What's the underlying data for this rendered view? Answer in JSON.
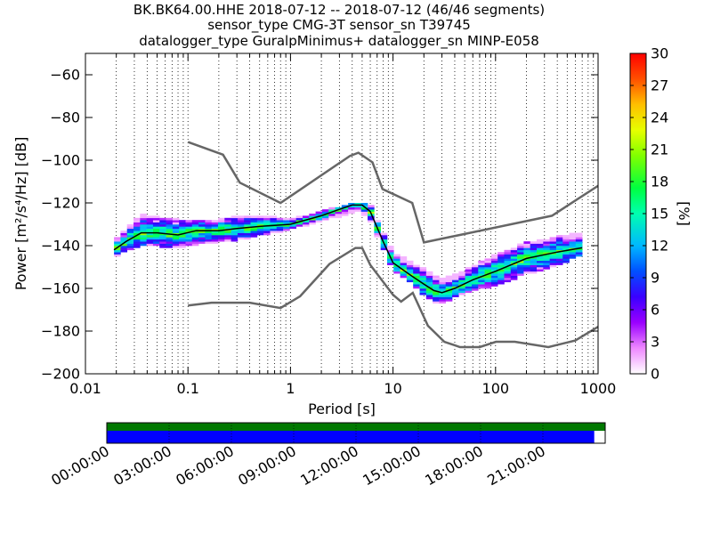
{
  "header": {
    "line1": "BK.BK64.00.HHE   2018-07-12 -- 2018-07-12  (46/46 segments)",
    "line2": "sensor_type CMG-3T sensor_sn T39745",
    "line3": "datalogger_type GuralpMinimus+ datalogger_sn MINP-E058"
  },
  "chart_data": [
    {
      "type": "heatmap",
      "title": "BK.BK64.00.HHE   2018-07-12 -- 2018-07-12  (46/46 segments)",
      "xlabel": "Period [s]",
      "ylabel": "Power [m²/s⁴/Hz] [dB]",
      "xscale": "log",
      "xlim": [
        0.01,
        1000
      ],
      "ylim": [
        -200,
        -50
      ],
      "xticks": [
        0.01,
        0.1,
        1,
        10,
        100,
        1000
      ],
      "xtick_labels": [
        "0.01",
        "0.1",
        "1",
        "10",
        "100",
        "1000"
      ],
      "yticks": [
        -200,
        -180,
        -160,
        -140,
        -120,
        -100,
        -80,
        -60
      ],
      "ytick_labels": [
        "−200",
        "−180",
        "−160",
        "−140",
        "−120",
        "−100",
        "−80",
        "−60"
      ],
      "grid": "dotted vertical",
      "colorbar": {
        "label": "[%]",
        "min": 0,
        "max": 30,
        "ticks": [
          0,
          3,
          6,
          9,
          12,
          15,
          18,
          21,
          24,
          27,
          30
        ],
        "tick_labels": [
          "0",
          "3",
          "6",
          "9",
          "12",
          "15",
          "18",
          "21",
          "24",
          "27",
          "30"
        ]
      },
      "series": [
        {
          "role": "high noise model",
          "color": "#666666",
          "x": [
            0.1,
            0.22,
            0.32,
            0.8,
            3.8,
            4.6,
            6.3,
            7.9,
            15.4,
            20,
            354.8,
            1000
          ],
          "y": [
            -91.5,
            -97.4,
            -110.5,
            -120,
            -98,
            -96.5,
            -101,
            -113.5,
            -120,
            -138.5,
            -126,
            -112
          ]
        },
        {
          "role": "low noise model",
          "color": "#666666",
          "x": [
            0.1,
            0.17,
            0.4,
            0.8,
            1.24,
            2.4,
            4.3,
            5,
            6,
            10,
            12,
            15.6,
            21.9,
            31.6,
            45,
            70,
            101,
            154,
            328,
            600,
            1000
          ],
          "y": [
            -168,
            -166.7,
            -166.7,
            -169.2,
            -163.7,
            -148.6,
            -141.1,
            -141.1,
            -149,
            -163,
            -166.2,
            -162.1,
            -177.5,
            -185,
            -187.5,
            -187.5,
            -185,
            -185,
            -187.5,
            -184.4,
            -178
          ]
        },
        {
          "role": "mode",
          "color": "#000000",
          "x": [
            0.019,
            0.025,
            0.035,
            0.05,
            0.08,
            0.12,
            0.2,
            0.3,
            0.5,
            1,
            2,
            3,
            4,
            5,
            6,
            8,
            10,
            15,
            20,
            25,
            30,
            40,
            60,
            100,
            200,
            400,
            700
          ],
          "y": [
            -142,
            -138,
            -134,
            -134,
            -135,
            -133,
            -133,
            -132,
            -131,
            -130,
            -126,
            -123,
            -121,
            -121,
            -124,
            -138,
            -148,
            -154,
            -158,
            -161,
            -162,
            -160,
            -156,
            -152,
            -146,
            -143,
            -141
          ]
        }
      ],
      "density": {
        "description": "probability density of PSD values in percent",
        "x": [
          0.019,
          0.025,
          0.035,
          0.05,
          0.08,
          0.12,
          0.2,
          0.3,
          0.5,
          1,
          2,
          3,
          4,
          5,
          6,
          8,
          10,
          15,
          20,
          25,
          30,
          40,
          60,
          100,
          200,
          400,
          700
        ],
        "y_low": [
          -145,
          -142,
          -140,
          -140,
          -141,
          -139,
          -138,
          -137,
          -135,
          -132,
          -128,
          -126,
          -124,
          -124,
          -128,
          -141,
          -151,
          -157,
          -163,
          -166,
          -167,
          -164,
          -161,
          -158,
          -153,
          -149,
          -144
        ],
        "y_high": [
          -138,
          -132,
          -125,
          -127,
          -128,
          -128,
          -128,
          -126,
          -126,
          -128,
          -124,
          -122,
          -120,
          -120,
          -121,
          -134,
          -143,
          -148,
          -151,
          -154,
          -156,
          -154,
          -150,
          -144,
          -139,
          -136,
          -134
        ]
      }
    },
    {
      "type": "timeline",
      "xtick_labels": [
        "00:00:00",
        "03:00:00",
        "06:00:00",
        "09:00:00",
        "12:00:00",
        "15:00:00",
        "18:00:00",
        "21:00:00"
      ],
      "segments_total": 46,
      "segments_used": 46,
      "coverage_top": 1.0,
      "coverage_bottom": 0.978,
      "colors": {
        "top": "#007800",
        "bottom": "#0000ff"
      }
    }
  ]
}
